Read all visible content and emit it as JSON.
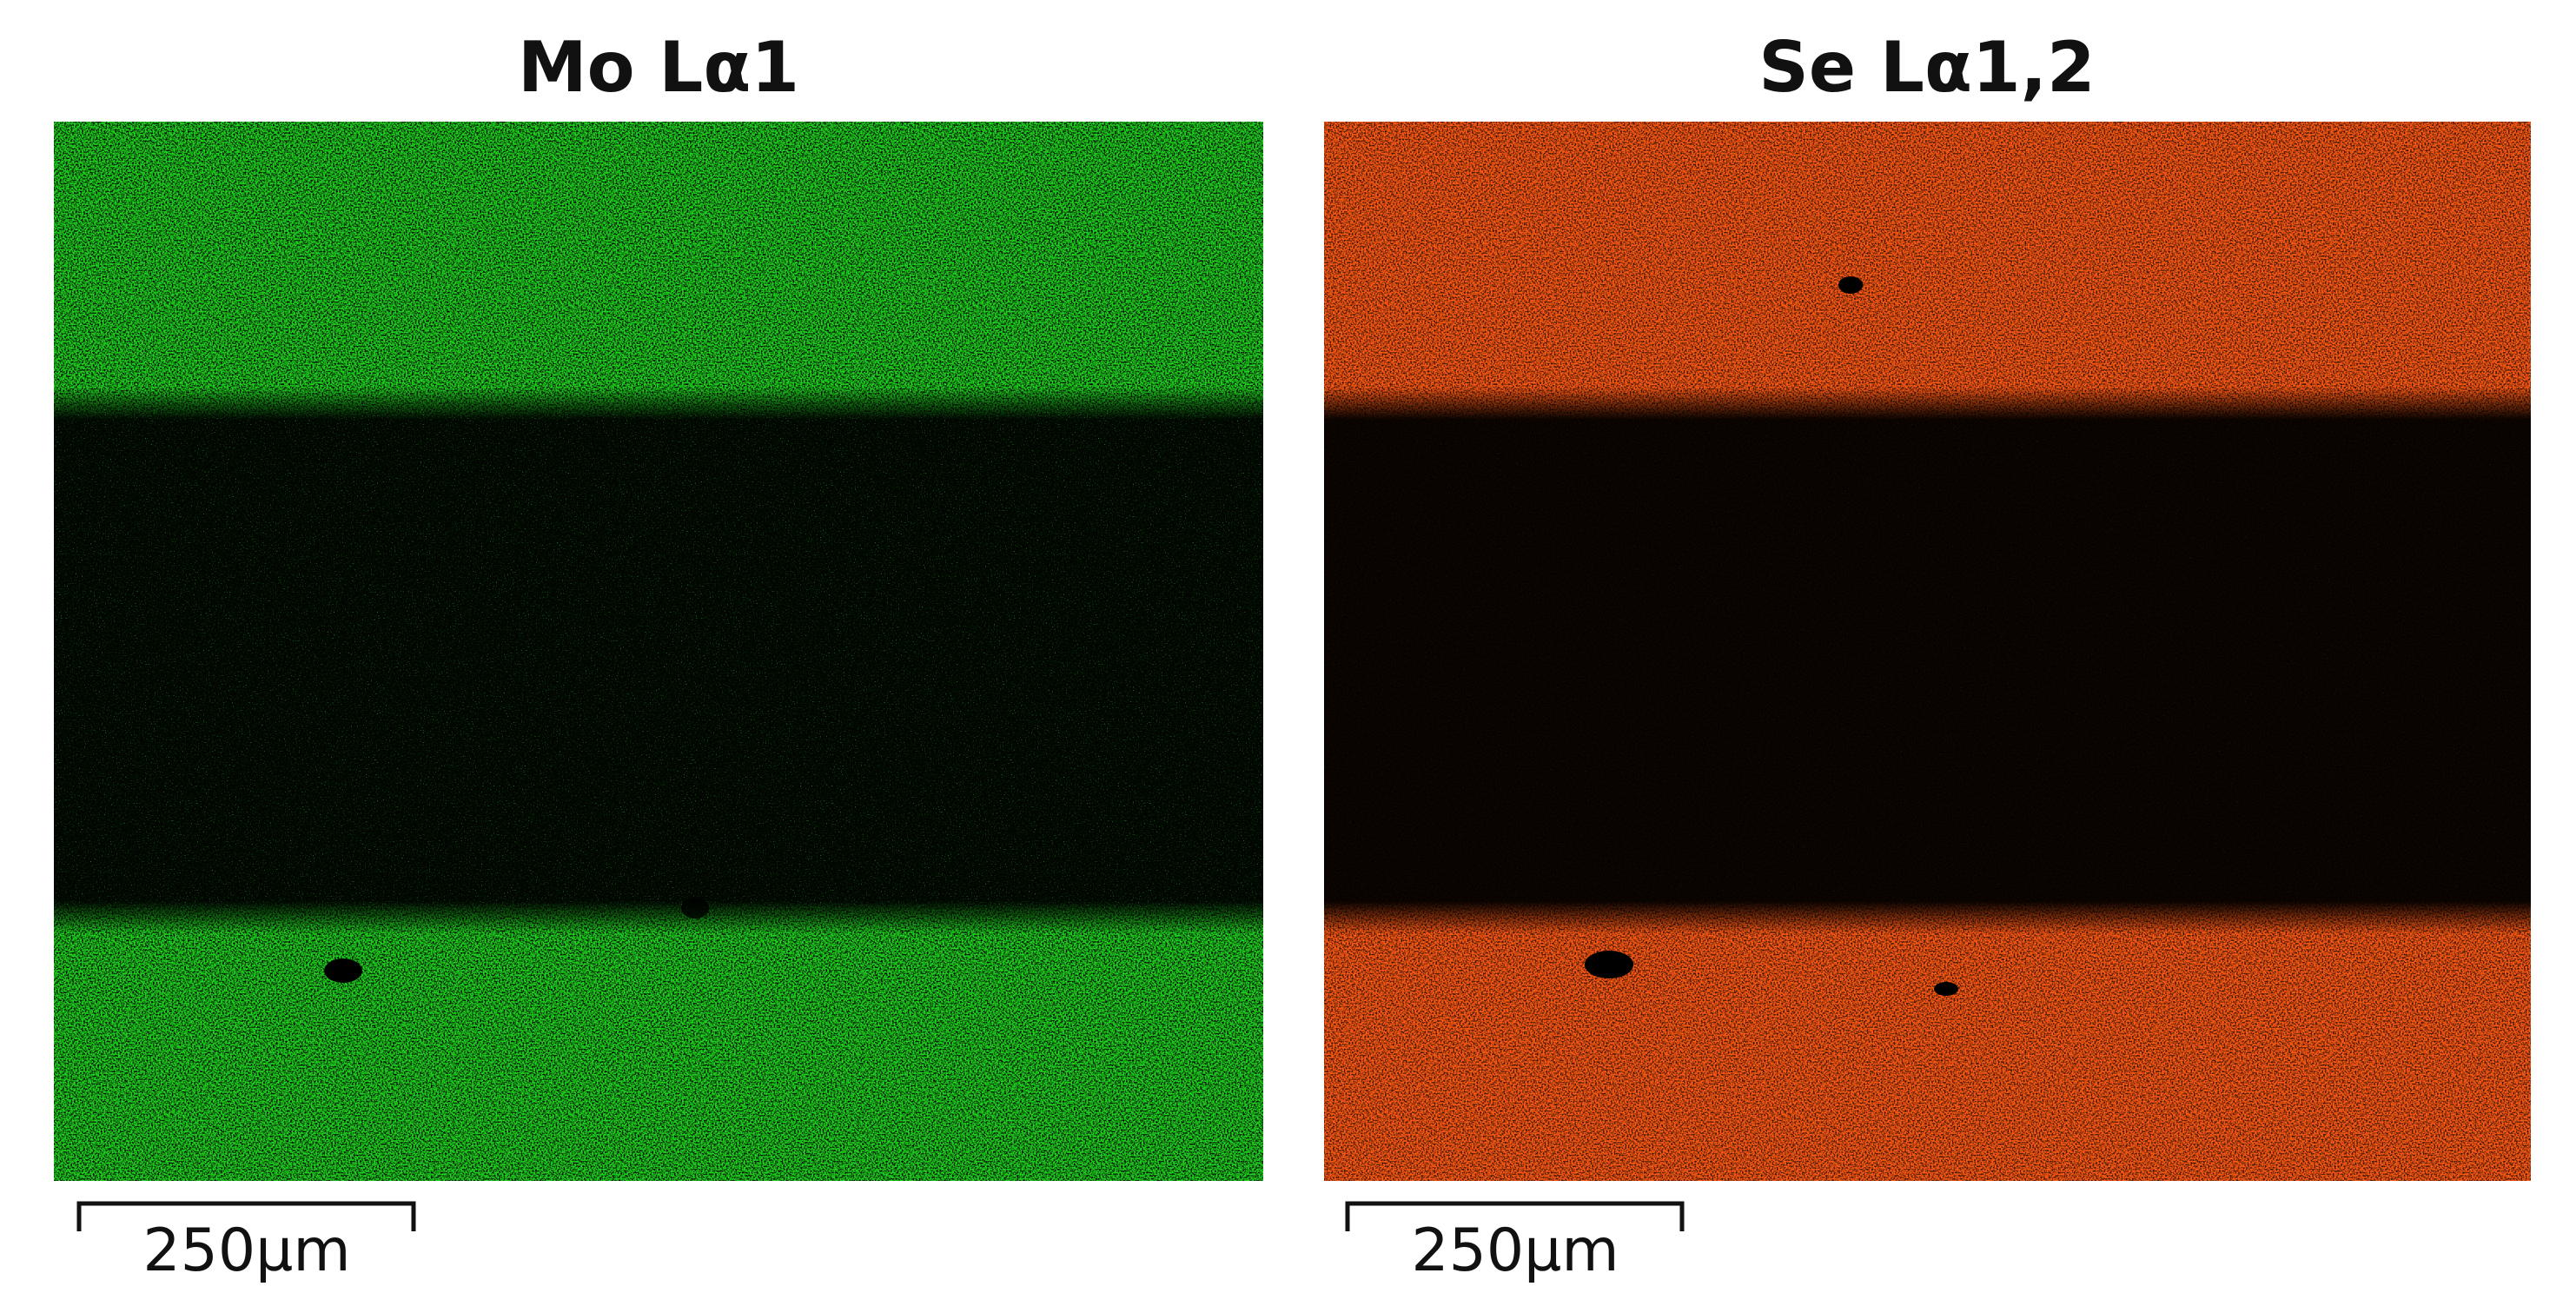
{
  "panels": [
    {
      "title": "Mo Lα1",
      "scale_bar": "250µm"
    },
    {
      "title": "Se Lα1,2",
      "scale_bar": "250µm"
    }
  ]
}
